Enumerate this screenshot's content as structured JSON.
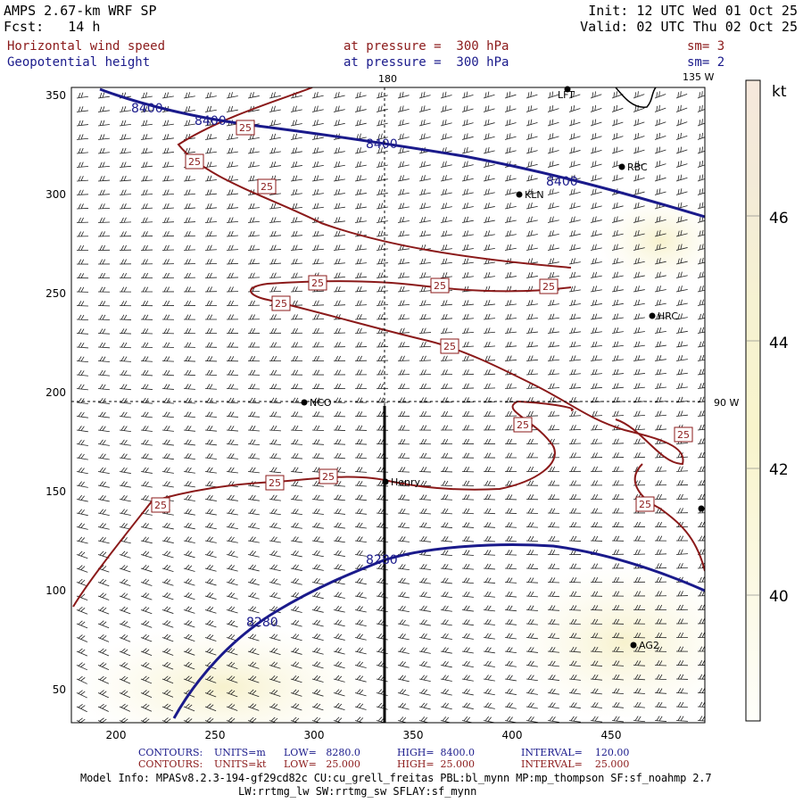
{
  "header": {
    "model": "AMPS 2.67-km WRF SP",
    "forecast": "Fcst:   14 h",
    "init": "Init: 12 UTC Wed 01 Oct 25",
    "valid": "Valid: 02 UTC Thu 02 Oct 25"
  },
  "fields": [
    {
      "name": "Horizontal wind speed",
      "level": "at pressure =  300 hPa",
      "smooth": "sm= 3",
      "color": "#8b1a1a"
    },
    {
      "name": "Geopotential height",
      "level": "at pressure =  300 hPa",
      "smooth": "sm= 2",
      "color": "#1a1a8b"
    }
  ],
  "map": {
    "x_ticks": [
      "200",
      "250",
      "300",
      "350",
      "400",
      "450"
    ],
    "y_ticks": [
      "350",
      "300",
      "250",
      "200",
      "150",
      "100",
      "50"
    ],
    "meridian_180": "180",
    "meridian_135w": "135 W",
    "meridian_90w": "90 W",
    "stations": [
      "LFT",
      "RBC",
      "KLN",
      "HRC",
      "NCO",
      "Henry",
      "AG2"
    ],
    "height_labels": [
      "8400",
      "8400",
      "8400",
      "8400",
      "8280",
      "8280"
    ],
    "wind_labels": [
      "25"
    ],
    "colorbar": {
      "unit": "kt",
      "ticks": [
        "46",
        "44",
        "42",
        "40"
      ]
    }
  },
  "chart_data": {
    "type": "contour",
    "title": "AMPS 2.67-km WRF SP  Horizontal wind speed / Geopotential height at 300 hPa",
    "x_range": [
      175,
      495
    ],
    "y_range": [
      35,
      355
    ],
    "colorbar_unit": "kt",
    "colorbar_ticks": [
      46,
      44,
      42,
      40
    ],
    "height_contours_m": [
      8280,
      8400
    ],
    "wind_contours_kt": [
      25
    ]
  },
  "legend": {
    "line1": {
      "label": "CONTOURS:",
      "units": "UNITS=m",
      "low": "LOW=   8280.0",
      "high": "HIGH=  8400.0",
      "interval": "INTERVAL=    120.00"
    },
    "line2": {
      "label": "CONTOURS:",
      "units": "UNITS=kt",
      "low": "LOW=   25.000",
      "high": "HIGH=  25.000",
      "interval": "INTERVAL=    25.000"
    }
  },
  "model_info": {
    "line1": "Model Info: MPASv8.2.3-194-gf29cd82c CU:cu_grell_freitas PBL:bl_mynn MP:mp_thompson SF:sf_noahmp 2.7",
    "line2": "LW:rrtmg_lw SW:rrtmg_sw SFLAY:sf_mynn"
  }
}
